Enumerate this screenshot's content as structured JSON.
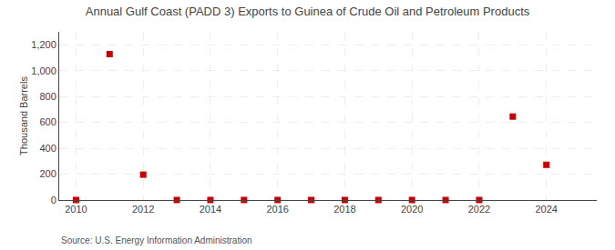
{
  "chart_data": {
    "type": "scatter",
    "title": "Annual Gulf Coast (PADD 3) Exports to Guinea of Crude Oil and Petroleum Products",
    "ylabel": "Thousand Barrels",
    "annotations": [
      "Source: U.S. Energy Information Administration"
    ],
    "x": [
      2010,
      2011,
      2012,
      2013,
      2014,
      2015,
      2016,
      2017,
      2018,
      2019,
      2020,
      2021,
      2022,
      2023,
      2024
    ],
    "values": [
      0,
      1128,
      196,
      0,
      0,
      0,
      0,
      0,
      0,
      0,
      0,
      0,
      0,
      645,
      272
    ],
    "color": "#cc0000",
    "marker": "square",
    "xlim": [
      2009.5,
      2025.5
    ],
    "xticks": [
      2010,
      2012,
      2014,
      2016,
      2018,
      2020,
      2022,
      2024
    ],
    "ylim": [
      0,
      1300
    ],
    "yticks": [
      0,
      200,
      400,
      600,
      800,
      {
        "value": 1000,
        "label": "1,000"
      },
      {
        "value": 1200,
        "label": "1,200"
      }
    ],
    "grid": true
  }
}
